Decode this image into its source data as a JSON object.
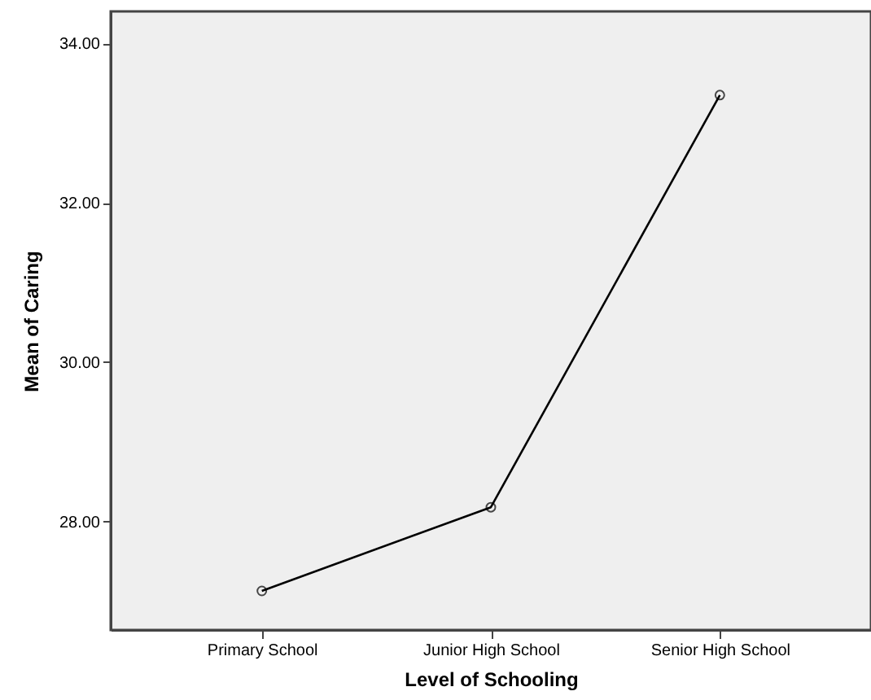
{
  "chart_data": {
    "type": "line",
    "xlabel": "Level of Schooling",
    "ylabel": "Mean of Caring",
    "categories": [
      "Primary School",
      "Junior High School",
      "Senior High School"
    ],
    "series": [
      {
        "color": "#000000",
        "values": [
          27.13,
          28.18,
          33.35
        ]
      }
    ],
    "ylim": [
      26.64,
      34.4
    ],
    "yticks": [
      {
        "value": 28,
        "label": "28.00"
      },
      {
        "value": 30,
        "label": "30.00"
      },
      {
        "value": 32,
        "label": "32.00"
      },
      {
        "value": 34,
        "label": "34.00"
      }
    ],
    "marker": "circle",
    "line_style": "solid",
    "grid": false
  }
}
